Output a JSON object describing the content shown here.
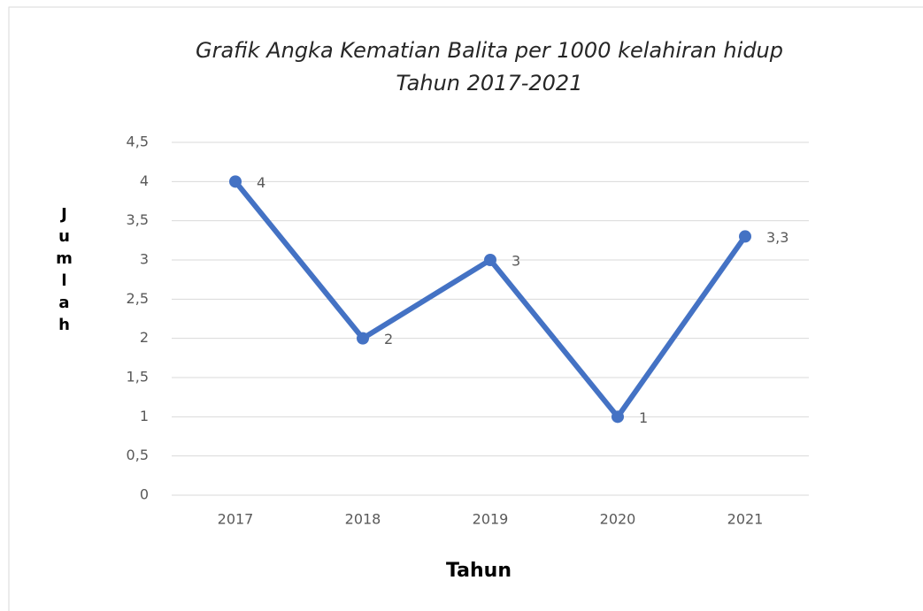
{
  "chart_data": {
    "type": "line",
    "title": [
      "Grafik Angka Kematian Balita per 1000 kelahiran hidup",
      "Tahun 2017-2021"
    ],
    "x_label": "Tahun",
    "y_label": "Jumlah",
    "categories": [
      "2017",
      "2018",
      "2019",
      "2020",
      "2021"
    ],
    "series": [
      {
        "name": "Jumlah",
        "color": "#4472c4",
        "values": [
          4,
          2,
          3,
          1,
          3.3
        ],
        "value_labels": [
          "4",
          "2",
          "3",
          "1",
          "3,3"
        ]
      }
    ],
    "ylim": [
      0,
      4.5
    ],
    "yticks": [
      0,
      {
        "value": 0.5,
        "label": "0,5"
      },
      1,
      {
        "value": 1.5,
        "label": "1,5"
      },
      2,
      {
        "value": 2.5,
        "label": "2,5"
      },
      3,
      {
        "value": 3.5,
        "label": "3,5"
      },
      4,
      {
        "value": 4.5,
        "label": "4,5"
      }
    ],
    "grid": true
  }
}
